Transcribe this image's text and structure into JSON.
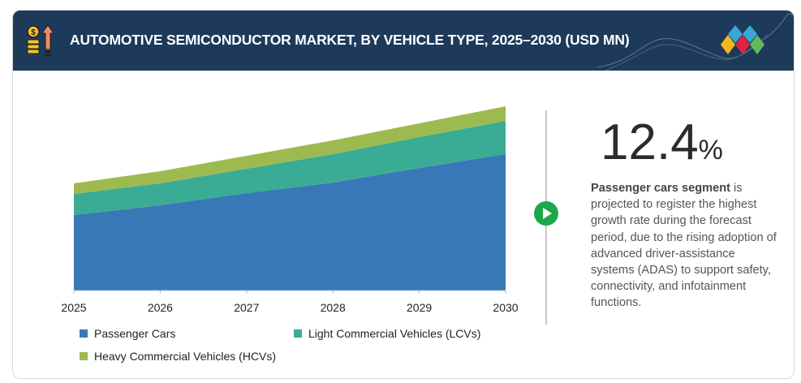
{
  "header": {
    "title": "AUTOMOTIVE SEMICONDUCTOR MARKET, BY VEHICLE TYPE, 2025–2030 (USD MN)",
    "icon": "money-growth-icon",
    "logo": "diamond-logo"
  },
  "chart_data": {
    "type": "area",
    "stacked": true,
    "title": "",
    "xlabel": "",
    "ylabel": "",
    "categories": [
      "2025",
      "2026",
      "2027",
      "2028",
      "2029",
      "2030"
    ],
    "y_axis_shown": false,
    "grid": false,
    "legend_position": "bottom",
    "series": [
      {
        "name": "Passenger Cars",
        "color": "#3878b6",
        "values": [
          93,
          105,
          120,
          133,
          151,
          168
        ]
      },
      {
        "name": "Light Commercial Vehicles (LCVs)",
        "color": "#3aab95",
        "values": [
          26,
          27,
          30,
          35,
          38,
          41
        ]
      },
      {
        "name": "Heavy Commercial Vehicles (HCVs)",
        "color": "#9dba50",
        "values": [
          13,
          15,
          16,
          17,
          17,
          18
        ]
      }
    ]
  },
  "highlight": {
    "value": "12.4",
    "unit": "%",
    "bold_text": "Passenger cars segment",
    "text": " is projected to register the highest growth rate during the forecast period, due to the rising adoption of advanced driver-assistance systems (ADAS) to support safety, connectivity, and infotainment functions.",
    "icon": "play-icon",
    "accent": "#1aa84a"
  }
}
